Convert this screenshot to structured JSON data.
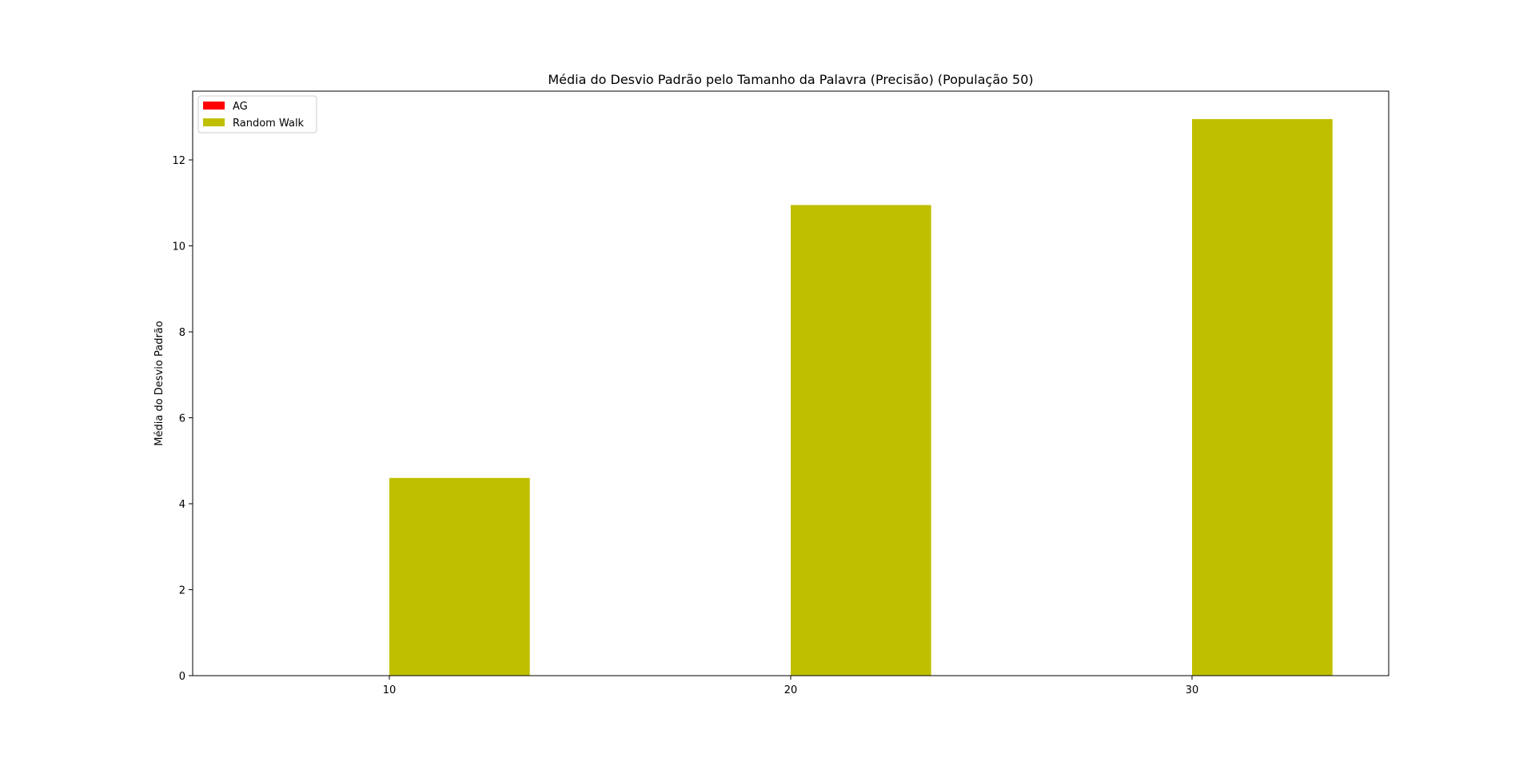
{
  "chart_data": {
    "type": "bar",
    "title": "Média do Desvio Padrão pelo Tamanho da Palavra (Precisão) (População 50)",
    "xlabel": "",
    "ylabel": "Média do Desvio Padrão",
    "x_ticks": [
      10,
      20,
      30
    ],
    "y_ticks": [
      0,
      2,
      4,
      6,
      8,
      10,
      12
    ],
    "xlim": [
      5.1,
      34.9
    ],
    "ylim": [
      0,
      13.6
    ],
    "grid": false,
    "legend_position": "top-left",
    "bar_width": 3.5,
    "series": [
      {
        "name": "AG",
        "color": "#ff0000",
        "x": [
          10,
          20,
          30
        ],
        "values": [
          0,
          0,
          0
        ]
      },
      {
        "name": "Random Walk",
        "color": "#bfbf00",
        "x": [
          10,
          20,
          30
        ],
        "values": [
          4.6,
          10.95,
          12.95
        ]
      }
    ]
  }
}
